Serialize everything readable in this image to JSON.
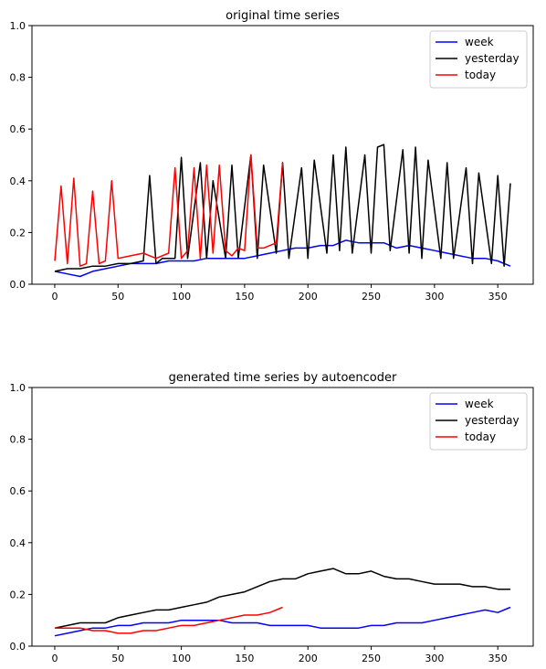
{
  "chart_data": [
    {
      "type": "line",
      "title": "original time series",
      "xlim": [
        -18,
        378
      ],
      "ylim": [
        0.0,
        1.0
      ],
      "xticks": [
        0,
        50,
        100,
        150,
        200,
        250,
        300,
        350
      ],
      "xtick_labels": [
        "0",
        "50",
        "100",
        "150",
        "200",
        "250",
        "300",
        "350"
      ],
      "yticks": [
        0.0,
        0.2,
        0.4,
        0.6,
        0.8,
        1.0
      ],
      "ytick_labels": [
        "0.0",
        "0.2",
        "0.4",
        "0.6",
        "0.8",
        "1.0"
      ],
      "legend_position": "upper right",
      "series": [
        {
          "name": "week",
          "color": "#0000ff",
          "x": [
            0,
            10,
            20,
            30,
            40,
            50,
            60,
            70,
            80,
            90,
            100,
            110,
            120,
            130,
            140,
            150,
            160,
            170,
            180,
            190,
            200,
            210,
            220,
            230,
            240,
            250,
            260,
            270,
            280,
            290,
            300,
            310,
            320,
            330,
            340,
            350,
            360
          ],
          "y": [
            0.05,
            0.04,
            0.03,
            0.05,
            0.06,
            0.07,
            0.08,
            0.08,
            0.08,
            0.09,
            0.09,
            0.09,
            0.1,
            0.1,
            0.1,
            0.1,
            0.11,
            0.12,
            0.13,
            0.14,
            0.14,
            0.15,
            0.15,
            0.17,
            0.16,
            0.16,
            0.16,
            0.14,
            0.15,
            0.14,
            0.13,
            0.12,
            0.11,
            0.1,
            0.1,
            0.09,
            0.07
          ]
        },
        {
          "name": "yesterday",
          "color": "#000000",
          "x": [
            0,
            10,
            20,
            30,
            40,
            50,
            60,
            70,
            75,
            80,
            85,
            95,
            100,
            105,
            115,
            120,
            125,
            135,
            140,
            145,
            155,
            160,
            165,
            175,
            180,
            185,
            195,
            200,
            205,
            215,
            220,
            225,
            230,
            235,
            245,
            250,
            255,
            260,
            265,
            275,
            280,
            285,
            290,
            295,
            305,
            310,
            315,
            325,
            330,
            335,
            345,
            350,
            355,
            360
          ],
          "y": [
            0.05,
            0.06,
            0.06,
            0.07,
            0.07,
            0.08,
            0.08,
            0.09,
            0.42,
            0.08,
            0.1,
            0.1,
            0.49,
            0.1,
            0.47,
            0.1,
            0.4,
            0.1,
            0.46,
            0.1,
            0.5,
            0.1,
            0.46,
            0.12,
            0.47,
            0.1,
            0.45,
            0.1,
            0.48,
            0.12,
            0.5,
            0.13,
            0.53,
            0.12,
            0.5,
            0.12,
            0.53,
            0.54,
            0.13,
            0.52,
            0.12,
            0.53,
            0.1,
            0.48,
            0.1,
            0.47,
            0.1,
            0.45,
            0.08,
            0.43,
            0.08,
            0.42,
            0.07,
            0.39
          ]
        },
        {
          "name": "today",
          "color": "#ff0000",
          "x": [
            0,
            5,
            10,
            15,
            20,
            25,
            30,
            35,
            40,
            45,
            50,
            60,
            70,
            80,
            90,
            95,
            100,
            105,
            110,
            115,
            120,
            125,
            130,
            135,
            140,
            145,
            150,
            155,
            160,
            165,
            170,
            175,
            180
          ],
          "y": [
            0.09,
            0.38,
            0.08,
            0.41,
            0.07,
            0.08,
            0.36,
            0.08,
            0.09,
            0.4,
            0.1,
            0.11,
            0.12,
            0.1,
            0.12,
            0.45,
            0.1,
            0.13,
            0.45,
            0.1,
            0.46,
            0.12,
            0.46,
            0.13,
            0.11,
            0.14,
            0.13,
            0.5,
            0.14,
            0.14,
            0.15,
            0.16,
            0.47
          ]
        }
      ]
    },
    {
      "type": "line",
      "title": "generated time series by autoencoder",
      "xlim": [
        -18,
        378
      ],
      "ylim": [
        0.0,
        1.0
      ],
      "xticks": [
        0,
        50,
        100,
        150,
        200,
        250,
        300,
        350
      ],
      "xtick_labels": [
        "0",
        "50",
        "100",
        "150",
        "200",
        "250",
        "300",
        "350"
      ],
      "yticks": [
        0.0,
        0.2,
        0.4,
        0.6,
        0.8,
        1.0
      ],
      "ytick_labels": [
        "0.0",
        "0.2",
        "0.4",
        "0.6",
        "0.8",
        "1.0"
      ],
      "legend_position": "upper right",
      "series": [
        {
          "name": "week",
          "color": "#0000ff",
          "x": [
            0,
            10,
            20,
            30,
            40,
            50,
            60,
            70,
            80,
            90,
            100,
            110,
            120,
            130,
            140,
            150,
            160,
            170,
            180,
            190,
            200,
            210,
            220,
            230,
            240,
            250,
            260,
            270,
            280,
            290,
            300,
            310,
            320,
            330,
            340,
            350,
            360
          ],
          "y": [
            0.04,
            0.05,
            0.06,
            0.07,
            0.07,
            0.08,
            0.08,
            0.09,
            0.09,
            0.09,
            0.1,
            0.1,
            0.1,
            0.1,
            0.09,
            0.09,
            0.09,
            0.08,
            0.08,
            0.08,
            0.08,
            0.07,
            0.07,
            0.07,
            0.07,
            0.08,
            0.08,
            0.09,
            0.09,
            0.09,
            0.1,
            0.11,
            0.12,
            0.13,
            0.14,
            0.13,
            0.15
          ]
        },
        {
          "name": "yesterday",
          "color": "#000000",
          "x": [
            0,
            10,
            20,
            30,
            40,
            50,
            60,
            70,
            80,
            90,
            100,
            110,
            120,
            130,
            140,
            150,
            160,
            170,
            180,
            190,
            200,
            210,
            220,
            230,
            240,
            250,
            260,
            270,
            280,
            290,
            300,
            310,
            320,
            330,
            340,
            350,
            360
          ],
          "y": [
            0.07,
            0.08,
            0.09,
            0.09,
            0.09,
            0.11,
            0.12,
            0.13,
            0.14,
            0.14,
            0.15,
            0.16,
            0.17,
            0.19,
            0.2,
            0.21,
            0.23,
            0.25,
            0.26,
            0.26,
            0.28,
            0.29,
            0.3,
            0.28,
            0.28,
            0.29,
            0.27,
            0.26,
            0.26,
            0.25,
            0.24,
            0.24,
            0.24,
            0.23,
            0.23,
            0.22,
            0.22
          ]
        },
        {
          "name": "today",
          "color": "#ff0000",
          "x": [
            0,
            10,
            20,
            30,
            40,
            50,
            60,
            70,
            80,
            90,
            100,
            110,
            120,
            130,
            140,
            150,
            160,
            170,
            180
          ],
          "y": [
            0.07,
            0.07,
            0.07,
            0.06,
            0.06,
            0.05,
            0.05,
            0.06,
            0.06,
            0.07,
            0.08,
            0.08,
            0.09,
            0.1,
            0.11,
            0.12,
            0.12,
            0.13,
            0.15
          ]
        }
      ]
    }
  ]
}
